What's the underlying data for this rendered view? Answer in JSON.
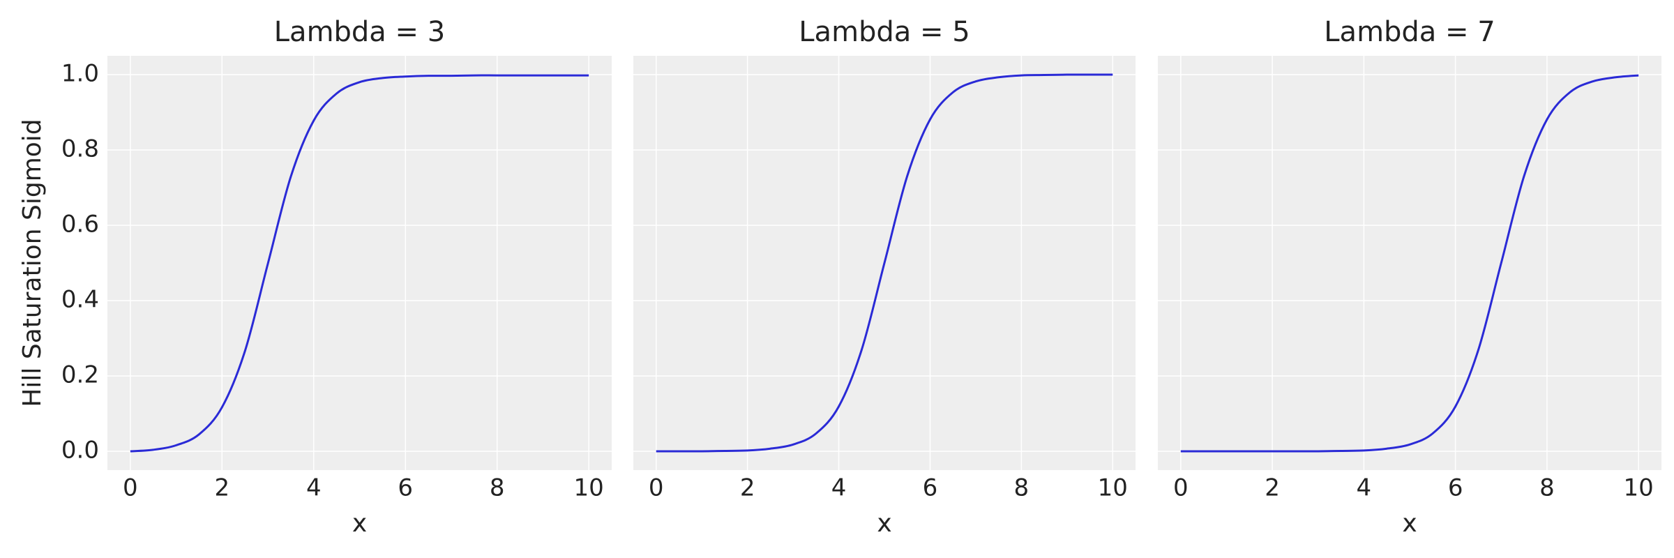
{
  "chart_data": [
    {
      "type": "line",
      "title": "Lambda = 3",
      "x_label": "x",
      "y_label": "Hill Saturation Sigmoid",
      "x": [
        0,
        0.5,
        1,
        1.5,
        2,
        2.5,
        3,
        3.5,
        4,
        4.5,
        5,
        5.5,
        6,
        6.5,
        7,
        7.5,
        8,
        8.5,
        9,
        9.5,
        10
      ],
      "values": [
        0,
        0.004,
        0.016,
        0.045,
        0.117,
        0.266,
        0.498,
        0.729,
        0.878,
        0.95,
        0.98,
        0.991,
        0.995,
        0.997,
        0.997,
        0.998,
        0.998,
        0.998,
        0.998,
        0.998,
        0.998
      ],
      "color": "#2a2ad6",
      "xlim": [
        -0.5,
        10.5
      ],
      "ylim": [
        -0.05,
        1.05
      ],
      "xticks": [
        0,
        2,
        4,
        6,
        8,
        10
      ],
      "yticks": [
        {
          "value": 0,
          "label": "0.0"
        },
        0.2,
        0.4,
        0.6,
        0.8,
        {
          "value": 1,
          "label": "1.0"
        }
      ],
      "grid": true
    },
    {
      "type": "line",
      "title": "Lambda = 5",
      "x_label": "x",
      "x": [
        0,
        0.5,
        1,
        1.5,
        2,
        2.5,
        3,
        3.5,
        4,
        4.5,
        5,
        5.5,
        6,
        6.5,
        7,
        7.5,
        8,
        8.5,
        9,
        9.5,
        10
      ],
      "values": [
        0,
        0,
        0,
        0.001,
        0.002,
        0.007,
        0.018,
        0.047,
        0.119,
        0.269,
        0.5,
        0.731,
        0.881,
        0.953,
        0.982,
        0.993,
        0.998,
        0.999,
        1,
        1,
        1
      ],
      "color": "#2a2ad6",
      "xlim": [
        -0.5,
        10.5
      ],
      "ylim": [
        -0.05,
        1.05
      ],
      "xticks": [
        0,
        2,
        4,
        6,
        8,
        10
      ],
      "yticks": [
        0,
        0.2,
        0.4,
        0.6,
        0.8,
        1
      ],
      "grid": true
    },
    {
      "type": "line",
      "title": "Lambda = 7",
      "x_label": "x",
      "x": [
        0,
        0.5,
        1,
        1.5,
        2,
        2.5,
        3,
        3.5,
        4,
        4.5,
        5,
        5.5,
        6,
        6.5,
        7,
        7.5,
        8,
        8.5,
        9,
        9.5,
        10
      ],
      "values": [
        0,
        0,
        0,
        0,
        0,
        0,
        0,
        0.001,
        0.002,
        0.007,
        0.018,
        0.047,
        0.119,
        0.269,
        0.5,
        0.731,
        0.881,
        0.953,
        0.982,
        0.993,
        0.998
      ],
      "color": "#2a2ad6",
      "xlim": [
        -0.5,
        10.5
      ],
      "ylim": [
        -0.05,
        1.05
      ],
      "xticks": [
        0,
        2,
        4,
        6,
        8,
        10
      ],
      "yticks": [
        0,
        0.2,
        0.4,
        0.6,
        0.8,
        1
      ],
      "grid": true
    }
  ]
}
